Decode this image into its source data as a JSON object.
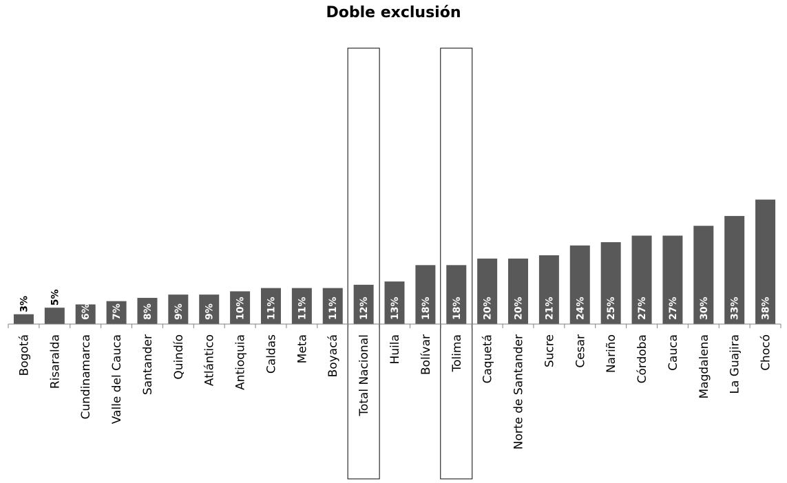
{
  "chart_data": {
    "type": "bar",
    "title": "Doble exclusión",
    "xlabel": "",
    "ylabel": "",
    "ylim": [
      0,
      40
    ],
    "grid": false,
    "legend": "none",
    "categories": [
      "Bogotá",
      "Risaralda",
      "Cundinamarca",
      "Valle del Cauca",
      "Santander",
      "Quindío",
      "Atlántico",
      "Antioquia",
      "Caldas",
      "Meta",
      "Boyacá",
      "Total Nacional",
      "Huila",
      "Bolívar",
      "Tolima",
      "Caquetá",
      "Norte de Santander",
      "Sucre",
      "Cesar",
      "Nariño",
      "Córdoba",
      "Cauca",
      "Magdalena",
      "La Guajira",
      "Chocó"
    ],
    "values": [
      3,
      5,
      6,
      7,
      8,
      9,
      9,
      10,
      11,
      11,
      11,
      12,
      13,
      18,
      18,
      20,
      20,
      21,
      24,
      25,
      27,
      27,
      30,
      33,
      38
    ],
    "value_labels": [
      "3%",
      "5%",
      "6%",
      "7%",
      "8%",
      "9%",
      "9%",
      "10%",
      "11%",
      "11%",
      "11%",
      "12%",
      "13%",
      "18%",
      "18%",
      "20%",
      "20%",
      "21%",
      "24%",
      "25%",
      "27%",
      "27%",
      "30%",
      "33%",
      "38%"
    ],
    "highlighted_categories": [
      "Total Nacional",
      "Tolima"
    ],
    "bar_color": "#595959",
    "inside_label_color": "#ffffff",
    "outside_label_color": "#000000"
  }
}
